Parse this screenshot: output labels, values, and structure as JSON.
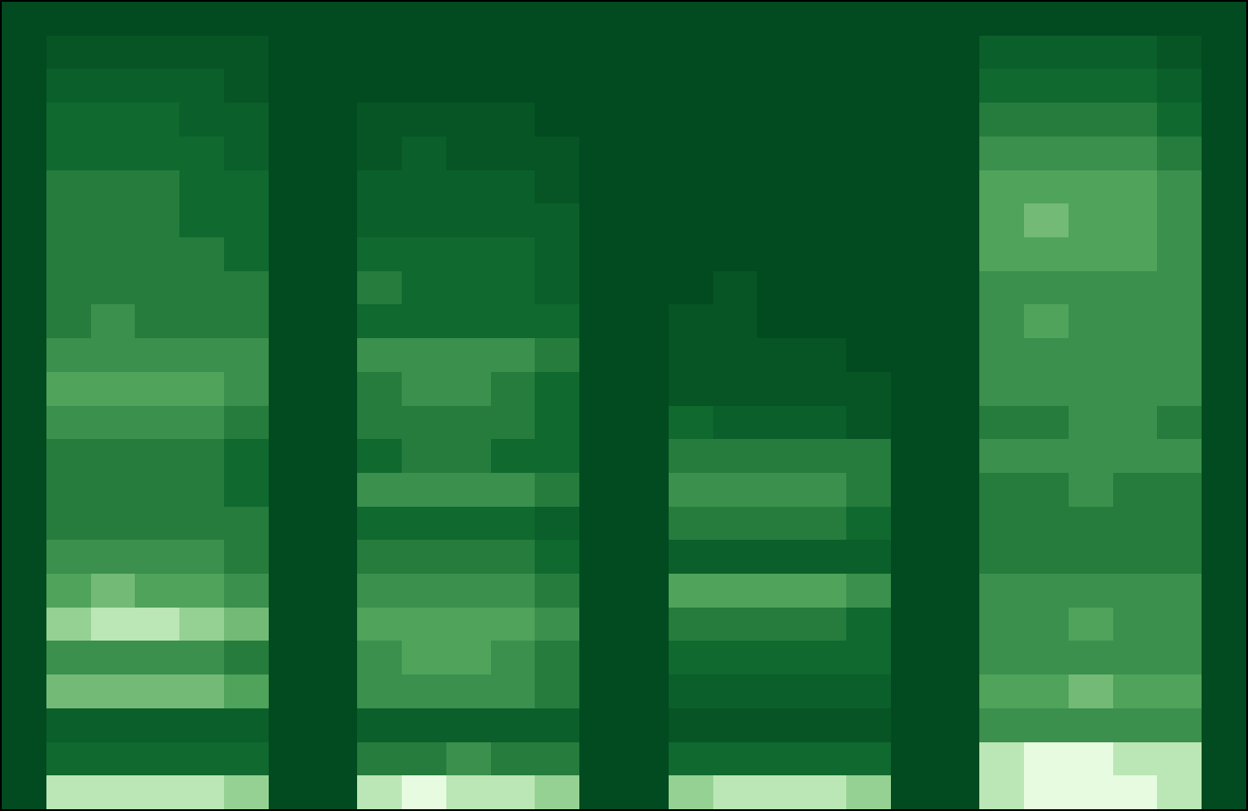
{
  "chart_data": {
    "type": "heatmap",
    "tick_labels": false,
    "xlim": [
      -0.5,
      27.5
    ],
    "ylim": [
      -0.5,
      23.5
    ],
    "zlim": [
      0,
      10
    ],
    "z": [
      [
        0,
        9,
        9,
        9,
        9,
        8,
        0,
        0,
        9,
        10,
        9,
        9,
        8,
        0,
        0,
        8,
        9,
        9,
        9,
        8,
        0,
        0,
        9,
        10,
        10,
        10,
        9,
        0
      ],
      [
        0,
        3,
        3,
        3,
        3,
        3,
        0,
        0,
        4,
        4,
        5,
        4,
        4,
        0,
        0,
        3,
        3,
        3,
        3,
        3,
        0,
        0,
        9,
        10,
        10,
        9,
        9,
        0
      ],
      [
        0,
        2,
        2,
        2,
        2,
        2,
        0,
        0,
        2,
        2,
        2,
        2,
        2,
        0,
        0,
        1,
        1,
        1,
        1,
        1,
        0,
        0,
        5,
        5,
        5,
        5,
        5,
        0
      ],
      [
        0,
        7,
        7,
        7,
        7,
        6,
        0,
        0,
        5,
        5,
        5,
        5,
        4,
        0,
        0,
        2,
        2,
        2,
        2,
        2,
        0,
        0,
        6,
        6,
        7,
        6,
        6,
        0
      ],
      [
        0,
        5,
        5,
        5,
        5,
        4,
        0,
        0,
        5,
        6,
        6,
        5,
        4,
        0,
        0,
        3,
        3,
        3,
        3,
        3,
        0,
        0,
        5,
        5,
        5,
        5,
        5,
        0
      ],
      [
        0,
        8,
        9,
        9,
        8,
        7,
        0,
        0,
        6,
        6,
        6,
        6,
        5,
        0,
        0,
        4,
        4,
        4,
        4,
        3,
        0,
        0,
        5,
        5,
        6,
        5,
        5,
        0
      ],
      [
        0,
        6,
        7,
        6,
        6,
        5,
        0,
        0,
        5,
        5,
        5,
        5,
        4,
        0,
        0,
        6,
        6,
        6,
        6,
        5,
        0,
        0,
        5,
        5,
        5,
        5,
        5,
        0
      ],
      [
        0,
        5,
        5,
        5,
        5,
        4,
        0,
        0,
        4,
        4,
        4,
        4,
        3,
        0,
        0,
        2,
        2,
        2,
        2,
        2,
        0,
        0,
        4,
        4,
        4,
        4,
        4,
        0
      ],
      [
        0,
        4,
        4,
        4,
        4,
        4,
        0,
        0,
        3,
        3,
        3,
        3,
        2,
        0,
        0,
        4,
        4,
        4,
        4,
        3,
        0,
        0,
        4,
        4,
        4,
        4,
        4,
        0
      ],
      [
        0,
        4,
        4,
        4,
        4,
        3,
        0,
        0,
        5,
        5,
        5,
        5,
        4,
        0,
        0,
        5,
        5,
        5,
        5,
        4,
        0,
        0,
        4,
        4,
        5,
        4,
        4,
        0
      ],
      [
        0,
        4,
        4,
        4,
        4,
        3,
        0,
        0,
        3,
        4,
        4,
        3,
        3,
        0,
        0,
        4,
        4,
        4,
        4,
        4,
        0,
        0,
        5,
        5,
        5,
        5,
        5,
        0
      ],
      [
        0,
        5,
        5,
        5,
        5,
        4,
        0,
        0,
        4,
        4,
        4,
        4,
        3,
        0,
        0,
        3,
        2,
        2,
        2,
        1,
        0,
        0,
        4,
        4,
        5,
        5,
        4,
        0
      ],
      [
        0,
        6,
        6,
        6,
        6,
        5,
        0,
        0,
        4,
        5,
        5,
        4,
        3,
        0,
        0,
        1,
        1,
        1,
        1,
        1,
        0,
        0,
        5,
        5,
        5,
        5,
        5,
        0
      ],
      [
        0,
        5,
        5,
        5,
        5,
        5,
        0,
        0,
        5,
        5,
        5,
        5,
        4,
        0,
        0,
        1,
        1,
        1,
        1,
        0,
        0,
        0,
        5,
        5,
        5,
        5,
        5,
        0
      ],
      [
        0,
        4,
        5,
        4,
        4,
        4,
        0,
        0,
        3,
        3,
        3,
        3,
        3,
        0,
        0,
        1,
        1,
        0,
        0,
        0,
        0,
        0,
        5,
        6,
        5,
        5,
        5,
        0
      ],
      [
        0,
        4,
        4,
        4,
        4,
        4,
        0,
        0,
        4,
        3,
        3,
        3,
        2,
        0,
        0,
        0,
        1,
        0,
        0,
        0,
        0,
        0,
        5,
        5,
        5,
        5,
        5,
        0
      ],
      [
        0,
        4,
        4,
        4,
        4,
        3,
        0,
        0,
        3,
        3,
        3,
        3,
        2,
        0,
        0,
        0,
        0,
        0,
        0,
        0,
        0,
        0,
        6,
        6,
        6,
        6,
        5,
        0
      ],
      [
        0,
        4,
        4,
        4,
        3,
        3,
        0,
        0,
        2,
        2,
        2,
        2,
        2,
        0,
        0,
        0,
        0,
        0,
        0,
        0,
        0,
        0,
        6,
        7,
        6,
        6,
        5,
        0
      ],
      [
        0,
        4,
        4,
        4,
        3,
        3,
        0,
        0,
        2,
        2,
        2,
        2,
        1,
        0,
        0,
        0,
        0,
        0,
        0,
        0,
        0,
        0,
        6,
        6,
        6,
        6,
        5,
        0
      ],
      [
        0,
        3,
        3,
        3,
        3,
        2,
        0,
        0,
        1,
        2,
        1,
        1,
        1,
        0,
        0,
        0,
        0,
        0,
        0,
        0,
        0,
        0,
        5,
        5,
        5,
        5,
        4,
        0
      ],
      [
        0,
        3,
        3,
        3,
        2,
        2,
        0,
        0,
        1,
        1,
        1,
        1,
        0,
        0,
        0,
        0,
        0,
        0,
        0,
        0,
        0,
        0,
        4,
        4,
        4,
        4,
        3,
        0
      ],
      [
        0,
        2,
        2,
        2,
        2,
        1,
        0,
        0,
        0,
        0,
        0,
        0,
        0,
        0,
        0,
        0,
        0,
        0,
        0,
        0,
        0,
        0,
        3,
        3,
        3,
        3,
        2,
        0
      ],
      [
        0,
        1,
        1,
        1,
        1,
        1,
        0,
        0,
        0,
        0,
        0,
        0,
        0,
        0,
        0,
        0,
        0,
        0,
        0,
        0,
        0,
        0,
        2,
        2,
        2,
        2,
        1,
        0
      ],
      [
        0,
        0,
        0,
        0,
        0,
        0,
        0,
        0,
        0,
        0,
        0,
        0,
        0,
        0,
        0,
        0,
        0,
        0,
        0,
        0,
        0,
        0,
        0,
        0,
        0,
        0,
        0,
        0
      ]
    ]
  }
}
